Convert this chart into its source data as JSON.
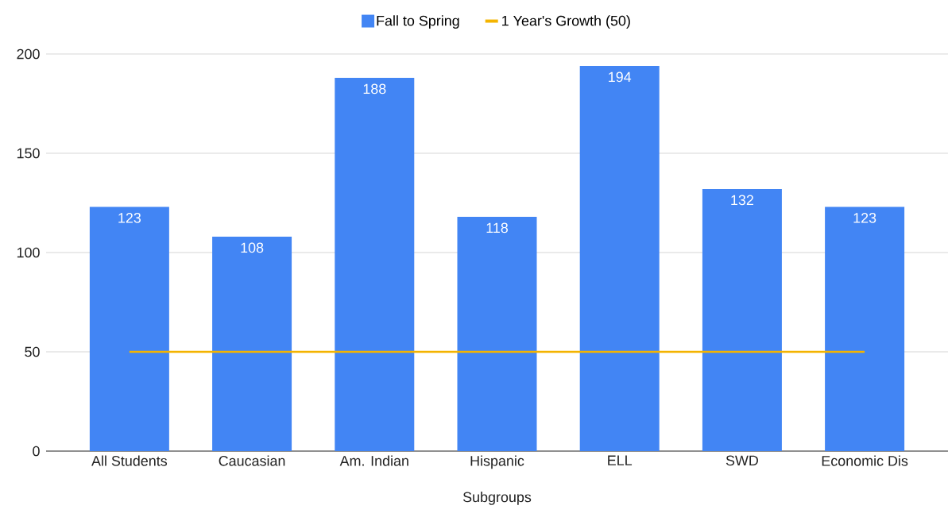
{
  "chart_data": {
    "type": "bar",
    "xlabel": "Subgroups",
    "categories": [
      "All Students",
      "Caucasian",
      "Am. Indian",
      "Hispanic",
      "ELL",
      "SWD",
      "Economic Dis"
    ],
    "series": [
      {
        "name": "Fall to Spring",
        "color": "#4285f4",
        "values": [
          123,
          108,
          188,
          118,
          194,
          132,
          123
        ],
        "data_labels": true
      },
      {
        "name": "1 Year's Growth (50)",
        "type": "line",
        "color": "#f4b400",
        "values": [
          50,
          50,
          50,
          50,
          50,
          50,
          50
        ]
      }
    ],
    "ylim": [
      0,
      200
    ],
    "yticks": [
      0,
      50,
      100,
      150,
      200
    ],
    "grid": "y",
    "legend": "top"
  }
}
